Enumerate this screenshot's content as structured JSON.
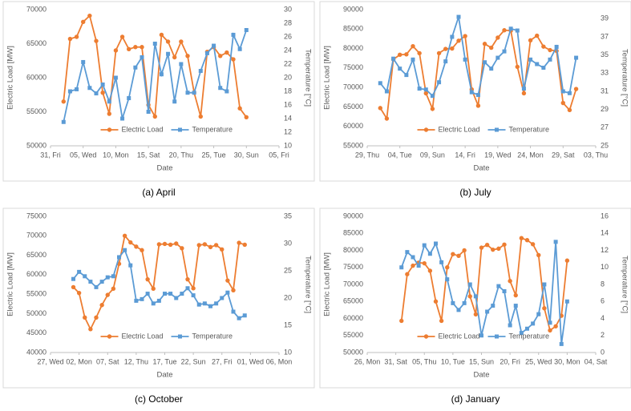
{
  "chart_data": [
    {
      "type": "line",
      "caption": "(a) April",
      "xlabel": "Date",
      "ylabel": "Electric Load [MW]",
      "y2label": "Temperature [°C]",
      "legend": "bottom",
      "grid": false,
      "xlim": [
        0,
        35
      ],
      "xticks": [
        {
          "value": 0,
          "label": "31, Fri"
        },
        {
          "value": 5,
          "label": "05, Wed"
        },
        {
          "value": 10,
          "label": "10, Mon"
        },
        {
          "value": 15,
          "label": "15, Sat"
        },
        {
          "value": 20,
          "label": "20, Thu"
        },
        {
          "value": 25,
          "label": "25, Tue"
        },
        {
          "value": 30,
          "label": "30, Sun"
        },
        {
          "value": 35,
          "label": "05, Fri"
        }
      ],
      "ylim": [
        50000,
        70000
      ],
      "yticks": [
        50000,
        55000,
        60000,
        65000,
        70000
      ],
      "y2lim": [
        10,
        30
      ],
      "y2ticks": [
        10,
        12,
        14,
        16,
        18,
        20,
        22,
        24,
        26,
        28,
        30
      ],
      "x": [
        2,
        3,
        4,
        5,
        6,
        7,
        8,
        9,
        10,
        11,
        12,
        13,
        14,
        15,
        16,
        17,
        18,
        19,
        20,
        21,
        22,
        23,
        24,
        25,
        26,
        27,
        28,
        29,
        30
      ],
      "series": [
        {
          "name": "Electric Load",
          "color": "#ed7d31",
          "marker": "circle",
          "values": [
            56500,
            65700,
            66000,
            68200,
            69100,
            65400,
            57800,
            54700,
            64000,
            66000,
            64200,
            64500,
            64500,
            56000,
            54300,
            66300,
            65300,
            63000,
            65300,
            63200,
            57800,
            54300,
            63800,
            64500,
            63200,
            63700,
            62700,
            55500,
            54200
          ]
        },
        {
          "name": "Temperature",
          "color": "#5b9bd5",
          "marker": "square",
          "axis": "y2",
          "values": [
            13.5,
            18,
            18.3,
            22.3,
            18.5,
            17.7,
            19,
            16.5,
            20,
            14,
            17,
            21.5,
            23,
            15,
            25,
            20.5,
            23.5,
            16.5,
            22,
            17.8,
            17.8,
            21,
            23.6,
            24.7,
            18.5,
            18,
            26.3,
            24.2,
            27
          ]
        }
      ]
    },
    {
      "type": "line",
      "caption": "(b) July",
      "xlabel": "Date",
      "ylabel": "Electric Load [MW]",
      "y2label": "Temperature [°C]",
      "legend": "bottom",
      "grid": false,
      "xlim": [
        0,
        35
      ],
      "xticks": [
        {
          "value": 0,
          "label": "29, Thu"
        },
        {
          "value": 5,
          "label": "04, Tue"
        },
        {
          "value": 10,
          "label": "09, Sun"
        },
        {
          "value": 15,
          "label": "14, Fri"
        },
        {
          "value": 20,
          "label": "19, Wed"
        },
        {
          "value": 25,
          "label": "24, Mon"
        },
        {
          "value": 30,
          "label": "29, Sat"
        },
        {
          "value": 35,
          "label": "03, Thu"
        }
      ],
      "ylim": [
        55000,
        90000
      ],
      "yticks": [
        55000,
        60000,
        65000,
        70000,
        75000,
        80000,
        85000,
        90000
      ],
      "y2lim": [
        25,
        40
      ],
      "y2ticks": [
        25,
        27,
        29,
        31,
        33,
        35,
        37,
        39
      ],
      "x": [
        2,
        3,
        4,
        5,
        6,
        7,
        8,
        9,
        10,
        11,
        12,
        13,
        14,
        15,
        16,
        17,
        18,
        19,
        20,
        21,
        22,
        23,
        24,
        25,
        26,
        27,
        28,
        29,
        30,
        31,
        32
      ],
      "series": [
        {
          "name": "Electric Load",
          "color": "#ed7d31",
          "marker": "circle",
          "values": [
            64700,
            62000,
            77200,
            78400,
            78500,
            80600,
            78800,
            68500,
            64500,
            78800,
            79900,
            80000,
            82000,
            83200,
            69500,
            65300,
            81200,
            80200,
            82800,
            84700,
            84600,
            75300,
            68500,
            82100,
            83300,
            80500,
            79600,
            79400,
            66000,
            64200,
            69600
          ]
        },
        {
          "name": "Temperature",
          "color": "#5b9bd5",
          "marker": "square",
          "axis": "y2",
          "values": [
            31.9,
            31,
            34.6,
            33.5,
            32.8,
            34.5,
            31.3,
            31.2,
            30.5,
            32,
            34.3,
            37,
            39.2,
            34.5,
            30.9,
            30.6,
            34.2,
            33.5,
            34.7,
            35.4,
            37.9,
            37.7,
            31.3,
            34.5,
            34,
            33.6,
            34.5,
            35.9,
            31,
            30.8,
            34.7
          ]
        }
      ]
    },
    {
      "type": "line",
      "caption": "(c) October",
      "xlabel": "Date",
      "ylabel": "Electric Load [MW]",
      "y2label": "Temperature [°C]",
      "legend": "bottom",
      "grid": false,
      "xlim": [
        0,
        40
      ],
      "xticks": [
        {
          "value": 0,
          "label": "27, Wed"
        },
        {
          "value": 5,
          "label": "02, Mon"
        },
        {
          "value": 10,
          "label": "07, Sat"
        },
        {
          "value": 15,
          "label": "12, Thu"
        },
        {
          "value": 20,
          "label": "17, Tue"
        },
        {
          "value": 25,
          "label": "22, Sun"
        },
        {
          "value": 30,
          "label": "27, Fri"
        },
        {
          "value": 35,
          "label": "01, Wed"
        },
        {
          "value": 40,
          "label": "06, Mon"
        }
      ],
      "ylim": [
        40000,
        75000
      ],
      "yticks": [
        40000,
        45000,
        50000,
        55000,
        60000,
        65000,
        70000,
        75000
      ],
      "y2lim": [
        10,
        35
      ],
      "y2ticks": [
        10,
        15,
        20,
        25,
        30,
        35
      ],
      "x": [
        4,
        5,
        6,
        7,
        8,
        9,
        10,
        11,
        12,
        13,
        14,
        15,
        16,
        17,
        18,
        19,
        20,
        21,
        22,
        23,
        24,
        25,
        26,
        27,
        28,
        29,
        30,
        31,
        32,
        33,
        34
      ],
      "series": [
        {
          "name": "Electric Load",
          "color": "#ed7d31",
          "marker": "circle",
          "values": [
            56800,
            55300,
            49000,
            46000,
            49000,
            52200,
            54800,
            56400,
            62800,
            70000,
            68300,
            67200,
            66300,
            58800,
            56400,
            67800,
            67900,
            67700,
            68000,
            66800,
            58800,
            56500,
            67600,
            67800,
            67100,
            67600,
            66500,
            58500,
            56000,
            68200,
            67700
          ]
        },
        {
          "name": "Temperature",
          "color": "#5b9bd5",
          "marker": "square",
          "axis": "y2",
          "values": [
            23.5,
            24.8,
            24,
            23,
            22,
            23,
            23.8,
            24,
            27.5,
            28.8,
            26,
            19.5,
            19.8,
            20.8,
            19,
            19.5,
            20.8,
            20.8,
            20,
            20.8,
            21.8,
            20.5,
            18.8,
            19,
            18.5,
            19,
            20,
            21,
            17.5,
            16.3,
            16.8
          ]
        }
      ]
    },
    {
      "type": "line",
      "caption": "(d) January",
      "xlabel": "Date",
      "ylabel": "Electric Load [MW]",
      "y2label": "Temperature [°C]",
      "legend": "bottom",
      "grid": false,
      "xlim": [
        0,
        40
      ],
      "xticks": [
        {
          "value": 0,
          "label": "26, Mon"
        },
        {
          "value": 5,
          "label": "31, Sat"
        },
        {
          "value": 10,
          "label": "05, Thu"
        },
        {
          "value": 15,
          "label": "10, Tue"
        },
        {
          "value": 20,
          "label": "15, Sun"
        },
        {
          "value": 25,
          "label": "20, Fri"
        },
        {
          "value": 30,
          "label": "25, Wed"
        },
        {
          "value": 35,
          "label": "30, Mon"
        },
        {
          "value": 40,
          "label": "04, Sat"
        }
      ],
      "ylim": [
        50000,
        90000
      ],
      "yticks": [
        50000,
        55000,
        60000,
        65000,
        70000,
        75000,
        80000,
        85000,
        90000
      ],
      "y2lim": [
        0,
        16
      ],
      "y2ticks": [
        0,
        2,
        4,
        6,
        8,
        10,
        12,
        14,
        16
      ],
      "x": [
        6,
        7,
        8,
        9,
        10,
        11,
        12,
        13,
        14,
        15,
        16,
        17,
        18,
        19,
        20,
        21,
        22,
        23,
        24,
        25,
        26,
        27,
        28,
        29,
        30,
        31,
        32,
        33,
        34,
        35
      ],
      "series": [
        {
          "name": "Electric Load",
          "color": "#ed7d31",
          "marker": "circle",
          "values": [
            59300,
            73000,
            75500,
            76400,
            76200,
            74000,
            65000,
            59300,
            75000,
            78900,
            78400,
            80000,
            66500,
            61200,
            80800,
            81600,
            80200,
            80500,
            81700,
            71000,
            66800,
            83600,
            83000,
            81800,
            78600,
            63000,
            56500,
            57700,
            60800,
            77000
          ]
        },
        {
          "name": "Temperature",
          "color": "#5b9bd5",
          "marker": "square",
          "axis": "y2",
          "values": [
            10,
            11.8,
            11.2,
            10.2,
            12.6,
            11.6,
            12.8,
            10.6,
            8.6,
            5.8,
            5,
            5.8,
            8,
            6.6,
            2,
            4.8,
            5.5,
            7.8,
            7.2,
            3.2,
            5.5,
            2.3,
            2.8,
            3.4,
            4.5,
            8,
            3.5,
            13,
            1,
            6
          ]
        }
      ]
    }
  ]
}
